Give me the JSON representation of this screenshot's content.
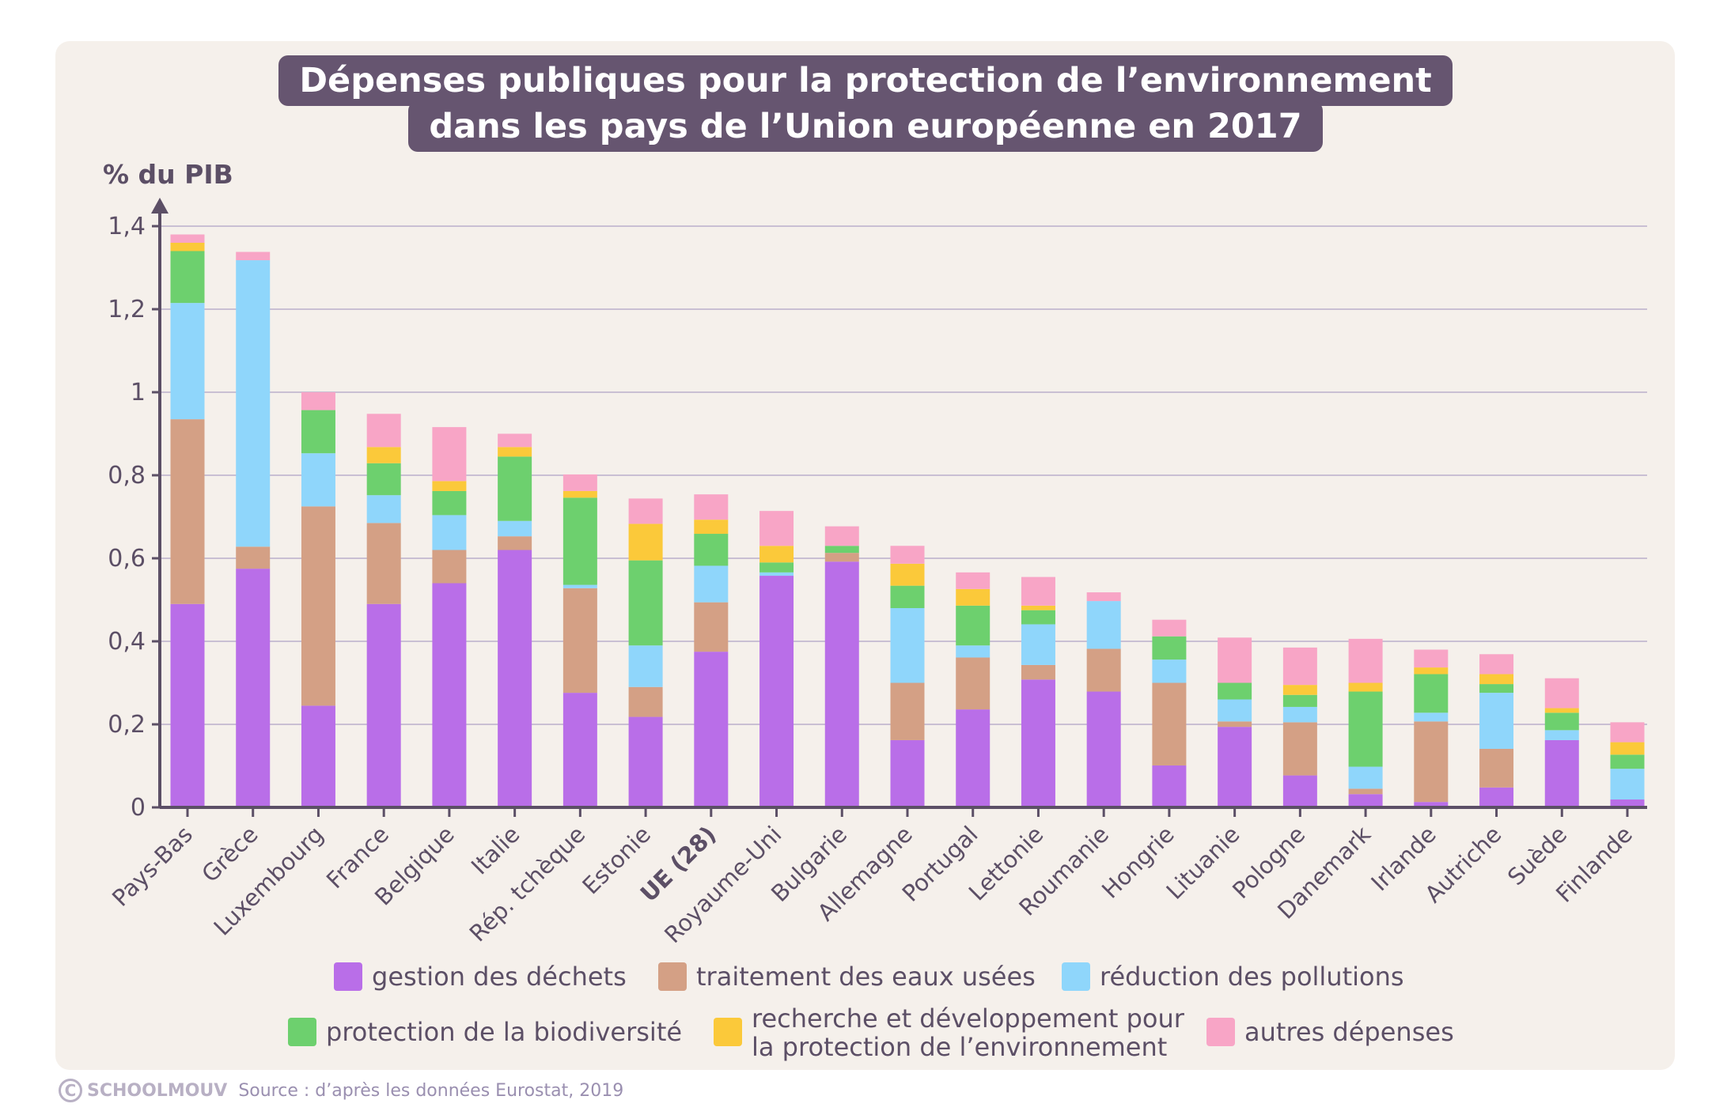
{
  "chart_data": {
    "type": "bar",
    "stacked": true,
    "title_lines": [
      "Dépenses publiques pour la protection de l’environnement",
      "dans les pays de l’Union européenne en 2017"
    ],
    "ylabel": "% du PIB",
    "xlabel": "",
    "ylim": [
      0,
      1.4
    ],
    "yticks": [
      "0",
      "0,2",
      "0,4",
      "0,6",
      "0,8",
      "1",
      "1,2",
      "1,4"
    ],
    "grid": true,
    "legend_position": "bottom",
    "categories": [
      "Pays-Bas",
      "Grèce",
      "Luxembourg",
      "France",
      "Belgique",
      "Italie",
      "Rép. tchèque",
      "Estonie",
      "UE (28)",
      "Royaume-Uni",
      "Bulgarie",
      "Allemagne",
      "Portugal",
      "Lettonie",
      "Roumanie",
      "Hongrie",
      "Lituanie",
      "Pologne",
      "Danemark",
      "Irlande",
      "Autriche",
      "Suède",
      "Finlande"
    ],
    "bold_categories": [
      "UE (28)"
    ],
    "series": [
      {
        "name": "gestion des déchets",
        "color": "#b96ee8",
        "values": [
          0.49,
          0.575,
          0.245,
          0.49,
          0.54,
          0.62,
          0.276,
          0.218,
          0.375,
          0.558,
          0.592,
          0.162,
          0.236,
          0.308,
          0.279,
          0.101,
          0.194,
          0.077,
          0.032,
          0.013,
          0.048,
          0.162,
          0.019
        ]
      },
      {
        "name": "traitement des eaux usées",
        "color": "#d4a085",
        "values": [
          0.445,
          0.053,
          0.48,
          0.195,
          0.08,
          0.033,
          0.252,
          0.072,
          0.119,
          0,
          0.021,
          0.138,
          0.125,
          0.035,
          0.103,
          0.199,
          0.013,
          0.128,
          0.013,
          0.194,
          0.093,
          0,
          0
        ]
      },
      {
        "name": "réduction des pollutions",
        "color": "#8fd6fb",
        "values": [
          0.28,
          0.69,
          0.128,
          0.067,
          0.084,
          0.037,
          0.008,
          0.1,
          0.088,
          0.008,
          0,
          0.18,
          0.029,
          0.098,
          0.115,
          0.056,
          0.053,
          0.037,
          0.053,
          0.021,
          0.135,
          0.024,
          0.074
        ]
      },
      {
        "name": "protection de la biodiversité",
        "color": "#6dd06e",
        "values": [
          0.125,
          0,
          0.104,
          0.077,
          0.058,
          0.155,
          0.21,
          0.205,
          0.077,
          0.024,
          0.017,
          0.054,
          0.096,
          0.034,
          0,
          0.056,
          0.04,
          0.029,
          0.181,
          0.093,
          0.021,
          0.042,
          0.034
        ]
      },
      {
        "name": "recherche et développement pour la protection de l’environnement",
        "color": "#fbc93a",
        "values": [
          0.02,
          0,
          0,
          0.039,
          0.024,
          0.023,
          0.016,
          0.088,
          0.034,
          0.04,
          0,
          0.053,
          0.04,
          0.011,
          0,
          0,
          0,
          0.024,
          0.021,
          0.016,
          0.024,
          0.011,
          0.03
        ]
      },
      {
        "name": "autres dépenses",
        "color": "#f8a5c6",
        "values": [
          0.02,
          0.02,
          0.043,
          0.08,
          0.13,
          0.032,
          0.04,
          0.061,
          0.061,
          0.084,
          0.047,
          0.043,
          0.04,
          0.069,
          0.021,
          0.04,
          0.109,
          0.09,
          0.106,
          0.043,
          0.048,
          0.072,
          0.048
        ]
      }
    ],
    "legend_lines": [
      [
        "gestion des déchets",
        "traitement des eaux usées",
        "réduction des pollutions"
      ],
      [
        "protection de la biodiversité",
        [
          "recherche et développement pour",
          "la protection de l’environnement"
        ],
        "autres dépenses"
      ]
    ]
  },
  "footer": {
    "brand": "SCHOOLMOUV",
    "copyright_symbol": "C",
    "source": "Source : d’après les données Eurostat, 2019"
  },
  "colors": {
    "card": "#f5f0eb",
    "title_bg": "#665570",
    "axis": "#5c4f66",
    "grid": "#c9bfd3"
  }
}
